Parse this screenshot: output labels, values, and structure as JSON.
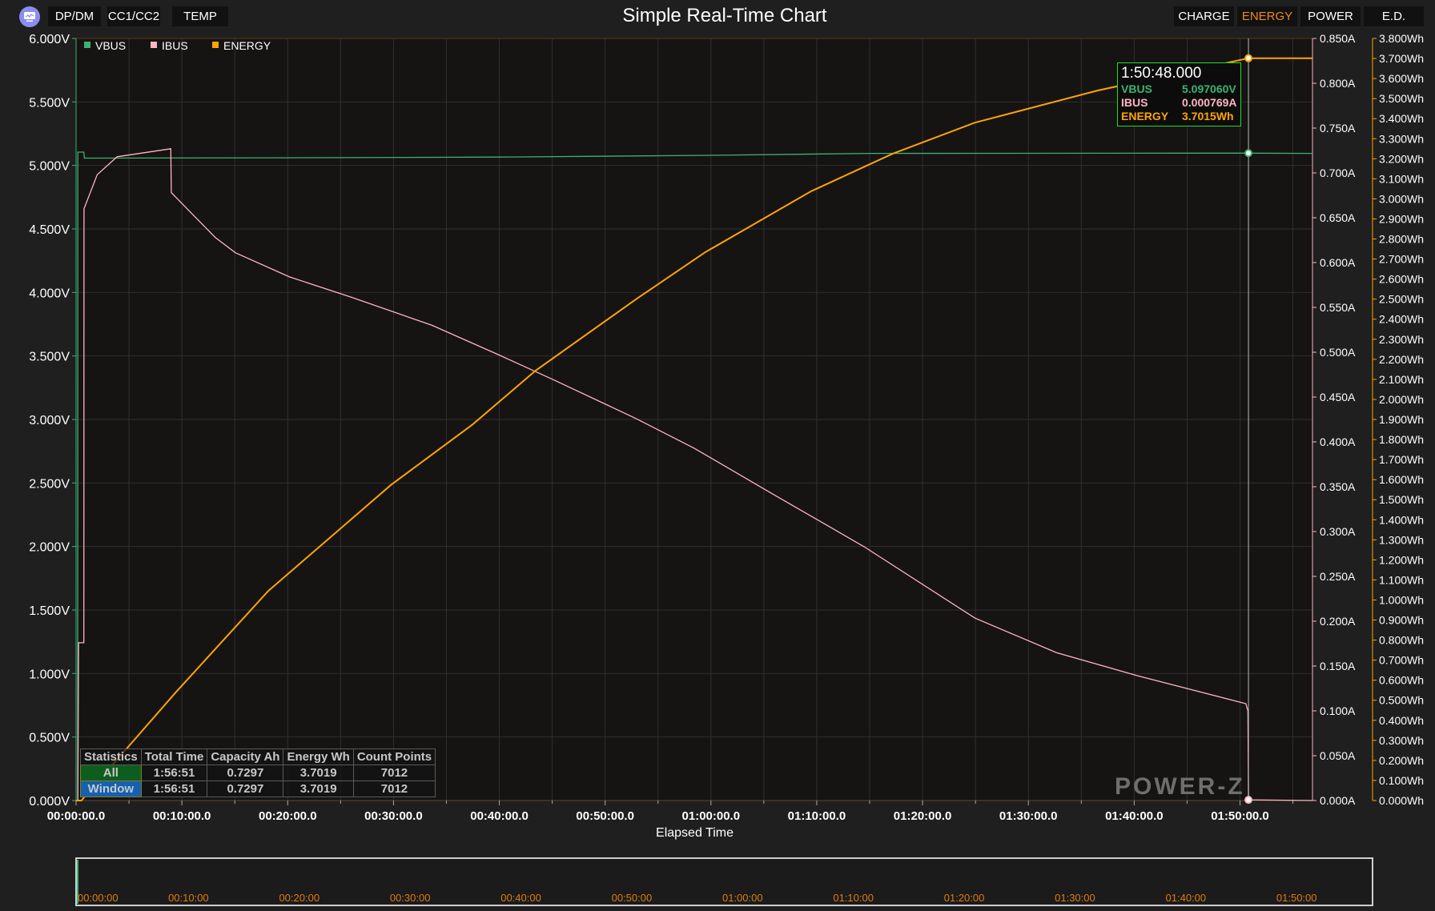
{
  "header": {
    "title": "Simple Real-Time Chart",
    "logo_icon": "chart-monitor-icon",
    "left_tabs": [
      {
        "label": "DP/DM"
      },
      {
        "label": "CC1/CC2"
      },
      {
        "label": "TEMP"
      }
    ],
    "right_tabs": [
      {
        "label": "CHARGE"
      },
      {
        "label": "ENERGY",
        "active": true
      },
      {
        "label": "POWER"
      },
      {
        "label": "E.D."
      }
    ]
  },
  "legend": [
    {
      "name": "VBUS",
      "color": "#3cb371"
    },
    {
      "name": "IBUS",
      "color": "#ffb6c1"
    },
    {
      "name": "ENERGY",
      "color": "#ffa500"
    }
  ],
  "tooltip": {
    "time": "1:50:48.000",
    "rows": [
      {
        "label": "VBUS",
        "value": "5.097060V",
        "color": "#3cb371"
      },
      {
        "label": "IBUS",
        "value": "0.000769A",
        "color": "#ffb6c1"
      },
      {
        "label": "ENERGY",
        "value": "3.7015Wh",
        "color": "#ffa500"
      }
    ]
  },
  "statistics": {
    "headers": [
      "Statistics",
      "Total Time",
      "Capacity Ah",
      "Energy Wh",
      "Count Points"
    ],
    "rows": [
      [
        "All",
        "1:56:51",
        "0.7297",
        "3.7019",
        "7012"
      ],
      [
        "Window",
        "1:56:51",
        "0.7297",
        "3.7019",
        "7012"
      ]
    ]
  },
  "watermark": "POWER-Z",
  "chart_data": {
    "type": "line",
    "xlabel": "Elapsed Time",
    "xlim": [
      "0:00:00",
      "1:56:51"
    ],
    "x_ticks": [
      "00:00:00.0",
      "00:10:00.0",
      "00:20:00.0",
      "00:30:00.0",
      "00:40:00.0",
      "00:50:00.0",
      "01:00:00.0",
      "01:10:00.0",
      "01:20:00.0",
      "01:30:00.0",
      "01:40:00.0",
      "01:50:00.0"
    ],
    "y_left": {
      "unit": "V",
      "ylim": [
        0,
        6
      ],
      "ticks": [
        "0.000V",
        "0.500V",
        "1.000V",
        "1.500V",
        "2.000V",
        "2.500V",
        "3.000V",
        "3.500V",
        "4.000V",
        "4.500V",
        "5.000V",
        "5.500V",
        "6.000V"
      ]
    },
    "y_right1": {
      "unit": "A",
      "ylim": [
        0,
        0.85
      ],
      "ticks": [
        "0.000A",
        "0.050A",
        "0.100A",
        "0.150A",
        "0.200A",
        "0.250A",
        "0.300A",
        "0.350A",
        "0.400A",
        "0.450A",
        "0.500A",
        "0.550A",
        "0.600A",
        "0.650A",
        "0.700A",
        "0.750A",
        "0.800A",
        "0.850A"
      ]
    },
    "y_right2": {
      "unit": "Wh",
      "ylim": [
        0,
        3.8
      ],
      "ticks": [
        "0.000Wh",
        "0.100Wh",
        "0.200Wh",
        "0.300Wh",
        "0.400Wh",
        "0.500Wh",
        "0.600Wh",
        "0.700Wh",
        "0.800Wh",
        "0.900Wh",
        "1.000Wh",
        "1.100Wh",
        "1.200Wh",
        "1.300Wh",
        "1.400Wh",
        "1.500Wh",
        "1.600Wh",
        "1.700Wh",
        "1.800Wh",
        "1.900Wh",
        "2.000Wh",
        "2.100Wh",
        "2.200Wh",
        "2.300Wh",
        "2.400Wh",
        "2.500Wh",
        "2.600Wh",
        "2.700Wh",
        "2.800Wh",
        "2.900Wh",
        "3.000Wh",
        "3.100Wh",
        "3.200Wh",
        "3.300Wh",
        "3.400Wh",
        "3.500Wh",
        "3.600Wh",
        "3.700Wh",
        "3.800Wh"
      ]
    },
    "grid": true,
    "legend_placement": "top-left",
    "cursor_time": "1:50:48",
    "series": [
      {
        "name": "VBUS",
        "axis": "y_left",
        "color": "#3cb371",
        "points": [
          [
            "0:00:00",
            0
          ],
          [
            "0:00:09",
            0
          ],
          [
            "0:00:10",
            5.105
          ],
          [
            "0:00:44",
            5.105
          ],
          [
            "0:00:47",
            5.058
          ],
          [
            "0:20:00",
            5.06
          ],
          [
            "0:40:00",
            5.066
          ],
          [
            "1:00:00",
            5.08
          ],
          [
            "1:15:00",
            5.095
          ],
          [
            "1:50:48",
            5.097
          ],
          [
            "1:56:51",
            5.095
          ]
        ]
      },
      {
        "name": "IBUS",
        "axis": "y_right1",
        "color": "#ffb6c1",
        "points": [
          [
            "0:00:00",
            0
          ],
          [
            "0:00:10",
            0
          ],
          [
            "0:00:14",
            0.176
          ],
          [
            "0:00:44",
            0.176
          ],
          [
            "0:00:45",
            0.66
          ],
          [
            "0:02:00",
            0.698
          ],
          [
            "0:03:53",
            0.718
          ],
          [
            "0:08:57",
            0.727
          ],
          [
            "0:09:00",
            0.678
          ],
          [
            "0:13:09",
            0.628
          ],
          [
            "0:15:03",
            0.611
          ],
          [
            "0:20:10",
            0.584
          ],
          [
            "0:25:52",
            0.562
          ],
          [
            "0:33:39",
            0.53
          ],
          [
            "0:39:58",
            0.497
          ],
          [
            "0:45:10",
            0.469
          ],
          [
            "0:52:56",
            0.426
          ],
          [
            "0:58:24",
            0.393
          ],
          [
            "1:05:40",
            0.343
          ],
          [
            "1:14:29",
            0.283
          ],
          [
            "1:24:57",
            0.2035
          ],
          [
            "1:32:39",
            0.165
          ],
          [
            "1:40:21",
            0.139
          ],
          [
            "1:50:33",
            0.108
          ],
          [
            "1:50:45",
            0.1
          ],
          [
            "1:50:48",
            0.000769
          ],
          [
            "1:56:51",
            0
          ]
        ]
      },
      {
        "name": "ENERGY",
        "axis": "y_right2",
        "color": "#ffa500",
        "points": [
          [
            "0:00:00",
            0
          ],
          [
            "0:00:30",
            0
          ],
          [
            "0:09:20",
            0.534
          ],
          [
            "0:18:10",
            1.045
          ],
          [
            "0:29:46",
            1.574
          ],
          [
            "0:37:28",
            1.875
          ],
          [
            "0:43:26",
            2.144
          ],
          [
            "0:52:56",
            2.5
          ],
          [
            "0:59:26",
            2.733
          ],
          [
            "1:09:28",
            3.038
          ],
          [
            "1:17:10",
            3.225
          ],
          [
            "1:24:57",
            3.38
          ],
          [
            "1:36:32",
            3.54
          ],
          [
            "1:50:48",
            3.7015
          ],
          [
            "1:56:51",
            3.7015
          ]
        ]
      }
    ]
  },
  "navigator": {
    "ticks": [
      "00:00:00",
      "00:10:00",
      "00:20:00",
      "00:30:00",
      "00:40:00",
      "00:50:00",
      "01:00:00",
      "01:10:00",
      "01:20:00",
      "01:30:00",
      "01:40:00",
      "01:50:00"
    ],
    "tick_color": "#e07a10"
  }
}
